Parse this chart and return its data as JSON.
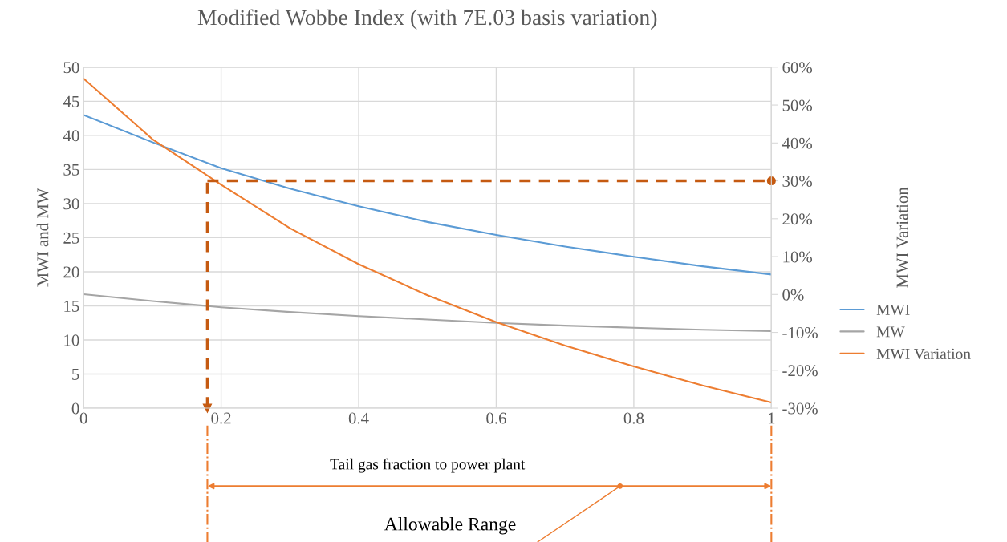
{
  "chart_data": {
    "type": "line",
    "title": "Modified Wobbe Index (with 7E.03 basis variation)",
    "xlabel": "Tail gas fraction to power plant",
    "ylabel": "MWI and MW",
    "y2label": "MWI Variation",
    "x": [
      0,
      0.1,
      0.2,
      0.3,
      0.4,
      0.5,
      0.6,
      0.7,
      0.8,
      0.9,
      1
    ],
    "series": [
      {
        "name": "MWI",
        "color": "#5b9bd5",
        "values": [
          43,
          39,
          35.2,
          32.2,
          29.6,
          27.3,
          25.4,
          23.7,
          22.2,
          20.8,
          19.6
        ]
      },
      {
        "name": "MW",
        "color": "#a5a5a5",
        "values": [
          16.7,
          15.7,
          14.8,
          14.1,
          13.5,
          13,
          12.5,
          12.1,
          11.8,
          11.5,
          11.3
        ]
      },
      {
        "name": "MWI Variation",
        "color": "#ed7d31",
        "axis": "y2",
        "values": [
          57,
          41,
          29,
          17.5,
          8,
          -0.2,
          -7.3,
          -13.5,
          -19,
          -24,
          -28.5
        ]
      }
    ],
    "xlim": [
      0,
      1
    ],
    "xticks": [
      0,
      0.2,
      0.4,
      0.6,
      0.8,
      1
    ],
    "ylim": [
      0,
      50
    ],
    "yticks": [
      0,
      5,
      10,
      15,
      20,
      25,
      30,
      35,
      40,
      45,
      50
    ],
    "y2lim": [
      -30,
      60
    ],
    "y2ticks": [
      {
        "value": -30,
        "label": "-30%"
      },
      {
        "value": -20,
        "label": "-20%"
      },
      {
        "value": -10,
        "label": "-10%"
      },
      {
        "value": 0,
        "label": "0%"
      },
      {
        "value": 10,
        "label": "10%"
      },
      {
        "value": 20,
        "label": "20%"
      },
      {
        "value": 30,
        "label": "30%"
      },
      {
        "value": 40,
        "label": "40%"
      },
      {
        "value": 50,
        "label": "50%"
      },
      {
        "value": 60,
        "label": "60%"
      }
    ],
    "ref_lines": [
      {
        "axis": "y2",
        "value": 30,
        "color": "#c55a11",
        "line_style": "dashed"
      },
      {
        "axis": "x",
        "value": 0.18,
        "color": "#c55a11",
        "line_style": "dashed"
      }
    ],
    "annotations": [
      "Allowable Range"
    ],
    "grid": true,
    "legend": "right"
  }
}
